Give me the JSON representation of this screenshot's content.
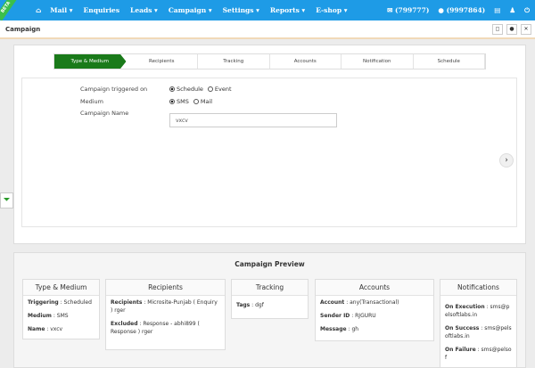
{
  "nav": {
    "badge": "BETA",
    "items": [
      "Mail",
      "Enquiries",
      "Leads",
      "Campaign",
      "Settings",
      "Reports",
      "E-shop"
    ],
    "phone1": "(799777)",
    "phone2": "(9997864)"
  },
  "header": {
    "title": "Campaign"
  },
  "steps": [
    "Type & Medium",
    "Recipients",
    "Tracking",
    "Accounts",
    "Notification",
    "Schedule"
  ],
  "form": {
    "trigger_label": "Campaign triggered on",
    "trigger_options": [
      "Schedule",
      "Event"
    ],
    "medium_label": "Medium",
    "medium_options": [
      "SMS",
      "Mail"
    ],
    "name_label": "Campaign Name",
    "name_value": "vxcv"
  },
  "preview": {
    "title": "Campaign Preview",
    "type": {
      "title": "Type & Medium",
      "rows": [
        [
          "Triggering",
          " : Scheduled"
        ],
        [
          "Medium",
          " : SMS"
        ],
        [
          "Name",
          " : vxcv"
        ]
      ]
    },
    "recipients": {
      "title": "Recipients",
      "rows": [
        [
          "Recipients",
          " : Microsite-Punjab ( Enquiry ) rger"
        ],
        [
          "Excluded",
          " : Response - abhi899 ( Response ) rger"
        ]
      ]
    },
    "tracking": {
      "title": "Tracking",
      "rows": [
        [
          "Tags",
          " : dgf"
        ]
      ]
    },
    "accounts": {
      "title": "Accounts",
      "rows": [
        [
          "Account",
          " : any(Transactional)"
        ],
        [
          "Sender ID",
          " : RJGURU"
        ],
        [
          "Message",
          " : gh"
        ]
      ]
    },
    "notifications": {
      "title": "Notifications",
      "rows": [
        [
          "On Execution",
          " : sms@pelsoftlabs.in"
        ],
        [
          "On Success",
          " : sms@pelsoftlabs.in"
        ],
        [
          "On Failure",
          " : sms@pelsof"
        ]
      ]
    }
  }
}
